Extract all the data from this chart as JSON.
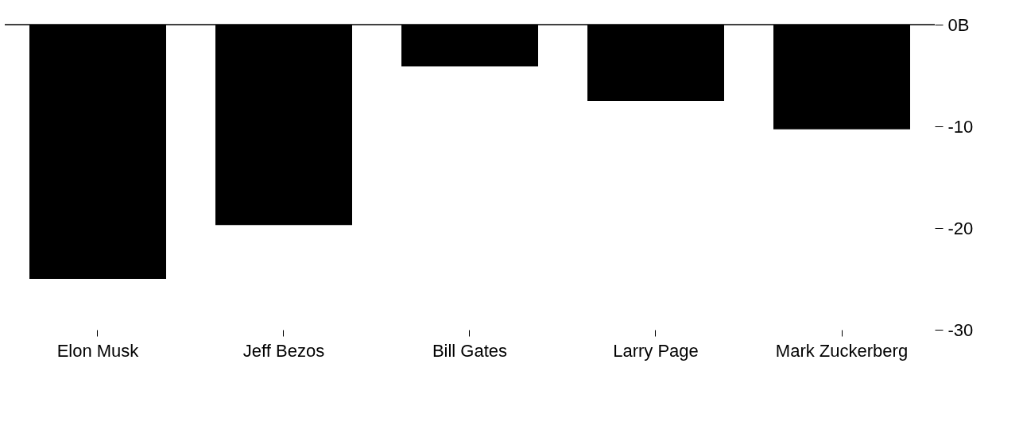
{
  "chart_data": {
    "type": "bar",
    "categories": [
      "Elon Musk",
      "Jeff Bezos",
      "Bill Gates",
      "Larry Page",
      "Mark Zuckerberg"
    ],
    "values": [
      -25.0,
      -19.7,
      -4.1,
      -7.5,
      -10.3
    ],
    "color": "#000000",
    "ylim": [
      -30,
      0
    ],
    "yticks": [
      {
        "value": 0,
        "label": "0B"
      },
      -10,
      -20,
      -30
    ],
    "ref_lines": [
      {
        "axis": "y",
        "value": 0,
        "color": "#000000"
      }
    ],
    "grid": false
  }
}
